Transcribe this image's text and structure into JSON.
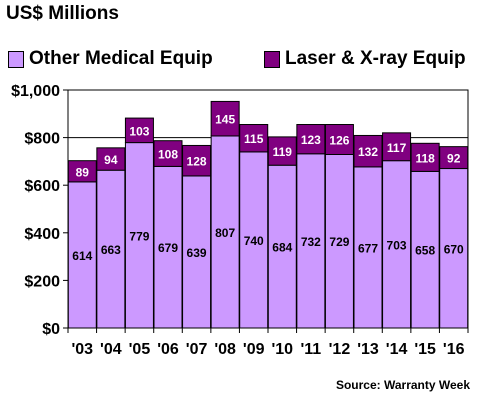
{
  "title": "US$ Millions",
  "source": "Source: Warranty Week",
  "colors": {
    "other_medical": "#cc99ff",
    "laser_xray": "#800080",
    "plot_background": "#ffffff",
    "gridline": "#000000"
  },
  "chart_data": {
    "type": "bar",
    "stacked": true,
    "categories": [
      "'03",
      "'04",
      "'05",
      "'06",
      "'07",
      "'08",
      "'09",
      "'10",
      "'11",
      "'12",
      "'13",
      "'14",
      "'15",
      "'16"
    ],
    "series": [
      {
        "name": "Other Medical Equip",
        "color": "#cc99ff",
        "values": [
          614,
          663,
          779,
          679,
          639,
          807,
          740,
          684,
          732,
          729,
          677,
          703,
          658,
          670
        ]
      },
      {
        "name": "Laser & X-ray Equip",
        "color": "#800080",
        "values": [
          89,
          94,
          103,
          108,
          128,
          145,
          115,
          119,
          123,
          126,
          132,
          117,
          118,
          92
        ]
      }
    ],
    "ylim": [
      0,
      1000
    ],
    "yticks": [
      0,
      200,
      400,
      600,
      800,
      1000
    ],
    "ytick_labels": [
      "$0",
      "$200",
      "$400",
      "$600",
      "$800",
      "$1,000"
    ],
    "xlabel": "",
    "ylabel": "",
    "grid": true,
    "legend_position": "top"
  }
}
